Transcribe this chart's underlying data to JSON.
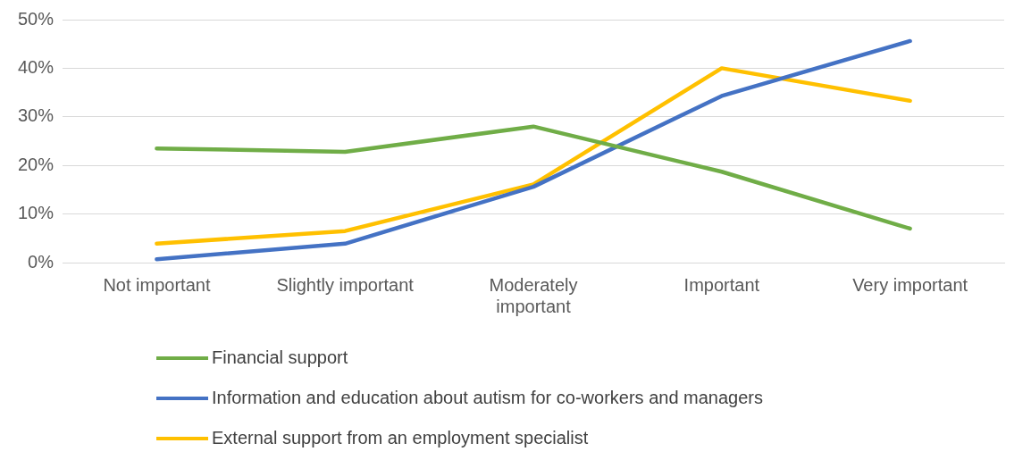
{
  "chart_data": {
    "type": "line",
    "categories": [
      "Not important",
      "Slightly important",
      "Moderately important",
      "Important",
      "Very important"
    ],
    "series": [
      {
        "name": "Financial support",
        "color": "#70ad47",
        "values": [
          23.5,
          22.8,
          28.0,
          18.7,
          7.0
        ]
      },
      {
        "name": "Information and education about autism for co-workers and managers",
        "color": "#4472c4",
        "values": [
          0.7,
          3.9,
          15.6,
          34.3,
          45.6
        ]
      },
      {
        "name": "External support from an employment specialist",
        "color": "#ffc000",
        "values": [
          3.9,
          6.5,
          16.1,
          40.0,
          33.3
        ]
      }
    ],
    "ylim": [
      0,
      50
    ],
    "yticks": [
      {
        "value": 0,
        "label": "0%"
      },
      {
        "value": 10,
        "label": "10%"
      },
      {
        "value": 20,
        "label": "20%"
      },
      {
        "value": 30,
        "label": "30%"
      },
      {
        "value": 40,
        "label": "40%"
      },
      {
        "value": 50,
        "label": "50%"
      }
    ],
    "grid": "y",
    "legend": "bottom",
    "marker": "none",
    "line_style": "solid"
  }
}
